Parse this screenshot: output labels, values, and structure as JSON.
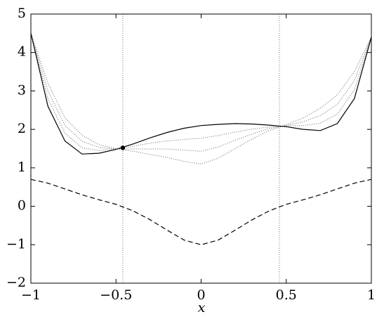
{
  "chart_data": {
    "type": "line",
    "x_label": "x",
    "x": [
      -1,
      -0.9,
      -0.8,
      -0.7,
      -0.6,
      -0.5,
      -0.4,
      -0.3,
      -0.2,
      -0.1,
      0,
      0.1,
      0.2,
      0.3,
      0.4,
      0.5,
      0.6,
      0.7,
      0.8,
      0.9,
      1
    ],
    "series": [
      {
        "color": "#666666",
        "style": "dotted",
        "values": [
          4.5,
          3.2,
          2.3,
          1.85,
          1.6,
          1.5,
          1.43,
          1.35,
          1.27,
          1.17,
          1.1,
          1.25,
          1.5,
          1.75,
          1.97,
          2.12,
          2.3,
          2.55,
          2.9,
          3.5,
          4.4
        ]
      },
      {
        "color": "#666666",
        "style": "dotted",
        "values": [
          4.5,
          3.0,
          2.1,
          1.69,
          1.53,
          1.49,
          1.49,
          1.49,
          1.49,
          1.46,
          1.43,
          1.54,
          1.72,
          1.88,
          2.02,
          2.1,
          2.2,
          2.36,
          2.65,
          3.27,
          4.4
        ]
      },
      {
        "color": "#666666",
        "style": "dotted",
        "values": [
          4.5,
          2.8,
          1.9,
          1.52,
          1.45,
          1.49,
          1.56,
          1.64,
          1.7,
          1.74,
          1.77,
          1.84,
          1.93,
          2.01,
          2.06,
          2.09,
          2.1,
          2.16,
          2.4,
          3.03,
          4.4
        ]
      },
      {
        "color": "#000000",
        "style": "solid",
        "values": [
          4.5,
          2.6,
          1.7,
          1.36,
          1.38,
          1.48,
          1.62,
          1.78,
          1.92,
          2.03,
          2.1,
          2.13,
          2.15,
          2.14,
          2.11,
          2.07,
          2.0,
          1.97,
          2.15,
          2.8,
          4.4
        ]
      },
      {
        "color": "#000000",
        "style": "dashed",
        "values": [
          0.7,
          0.6,
          0.45,
          0.3,
          0.17,
          0.05,
          -0.12,
          -0.35,
          -0.62,
          -0.88,
          -1,
          -0.88,
          -0.62,
          -0.35,
          -0.12,
          0.05,
          0.17,
          0.3,
          0.45,
          0.6,
          0.7
        ]
      }
    ],
    "vlines": [
      -0.46,
      0.46
    ],
    "marker": {
      "x": -0.46,
      "y": 1.52
    },
    "xlim": [
      -1,
      1
    ],
    "ylim": [
      -2,
      5
    ],
    "xticks": [
      {
        "value": -1,
        "label": "−1"
      },
      {
        "value": -0.5,
        "label": "−0.5"
      },
      0,
      0.5,
      1
    ],
    "yticks": [
      {
        "value": -2,
        "label": "−2"
      },
      {
        "value": -1,
        "label": "−1"
      },
      0,
      1,
      2,
      3,
      4,
      5
    ]
  }
}
